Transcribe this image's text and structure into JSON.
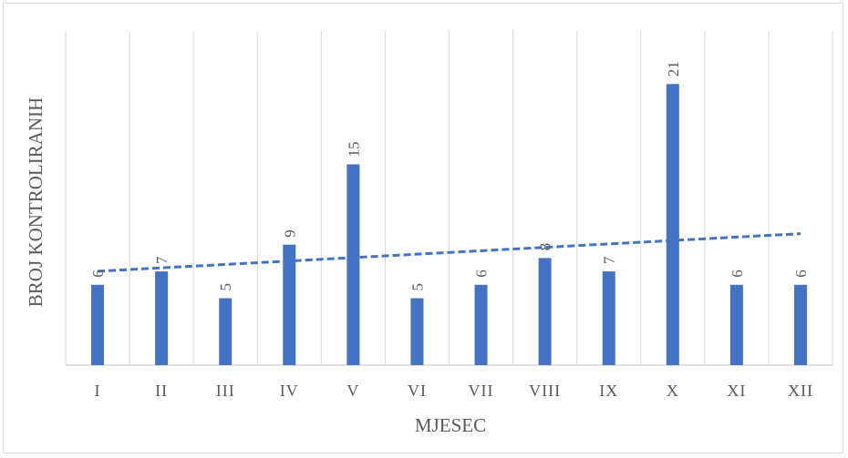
{
  "chart_data": {
    "type": "bar",
    "title": "",
    "xlabel": "MJESEC",
    "ylabel": "BROJ KONTROLIRANIH",
    "categories": [
      "I",
      "II",
      "III",
      "IV",
      "V",
      "VI",
      "VII",
      "VIII",
      "IX",
      "X",
      "XI",
      "XII"
    ],
    "values": [
      6,
      7,
      5,
      9,
      15,
      5,
      6,
      8,
      7,
      21,
      6,
      6
    ],
    "ylim": [
      0,
      21
    ],
    "grid": "vertical",
    "legend": "none",
    "trendline": {
      "type": "linear",
      "style": "dashed"
    },
    "colors": {
      "bar": "#4472c4",
      "trend": "#4472c4",
      "grid": "#d9d9d9",
      "axis": "#bfbfbf",
      "text": "#595959"
    }
  }
}
